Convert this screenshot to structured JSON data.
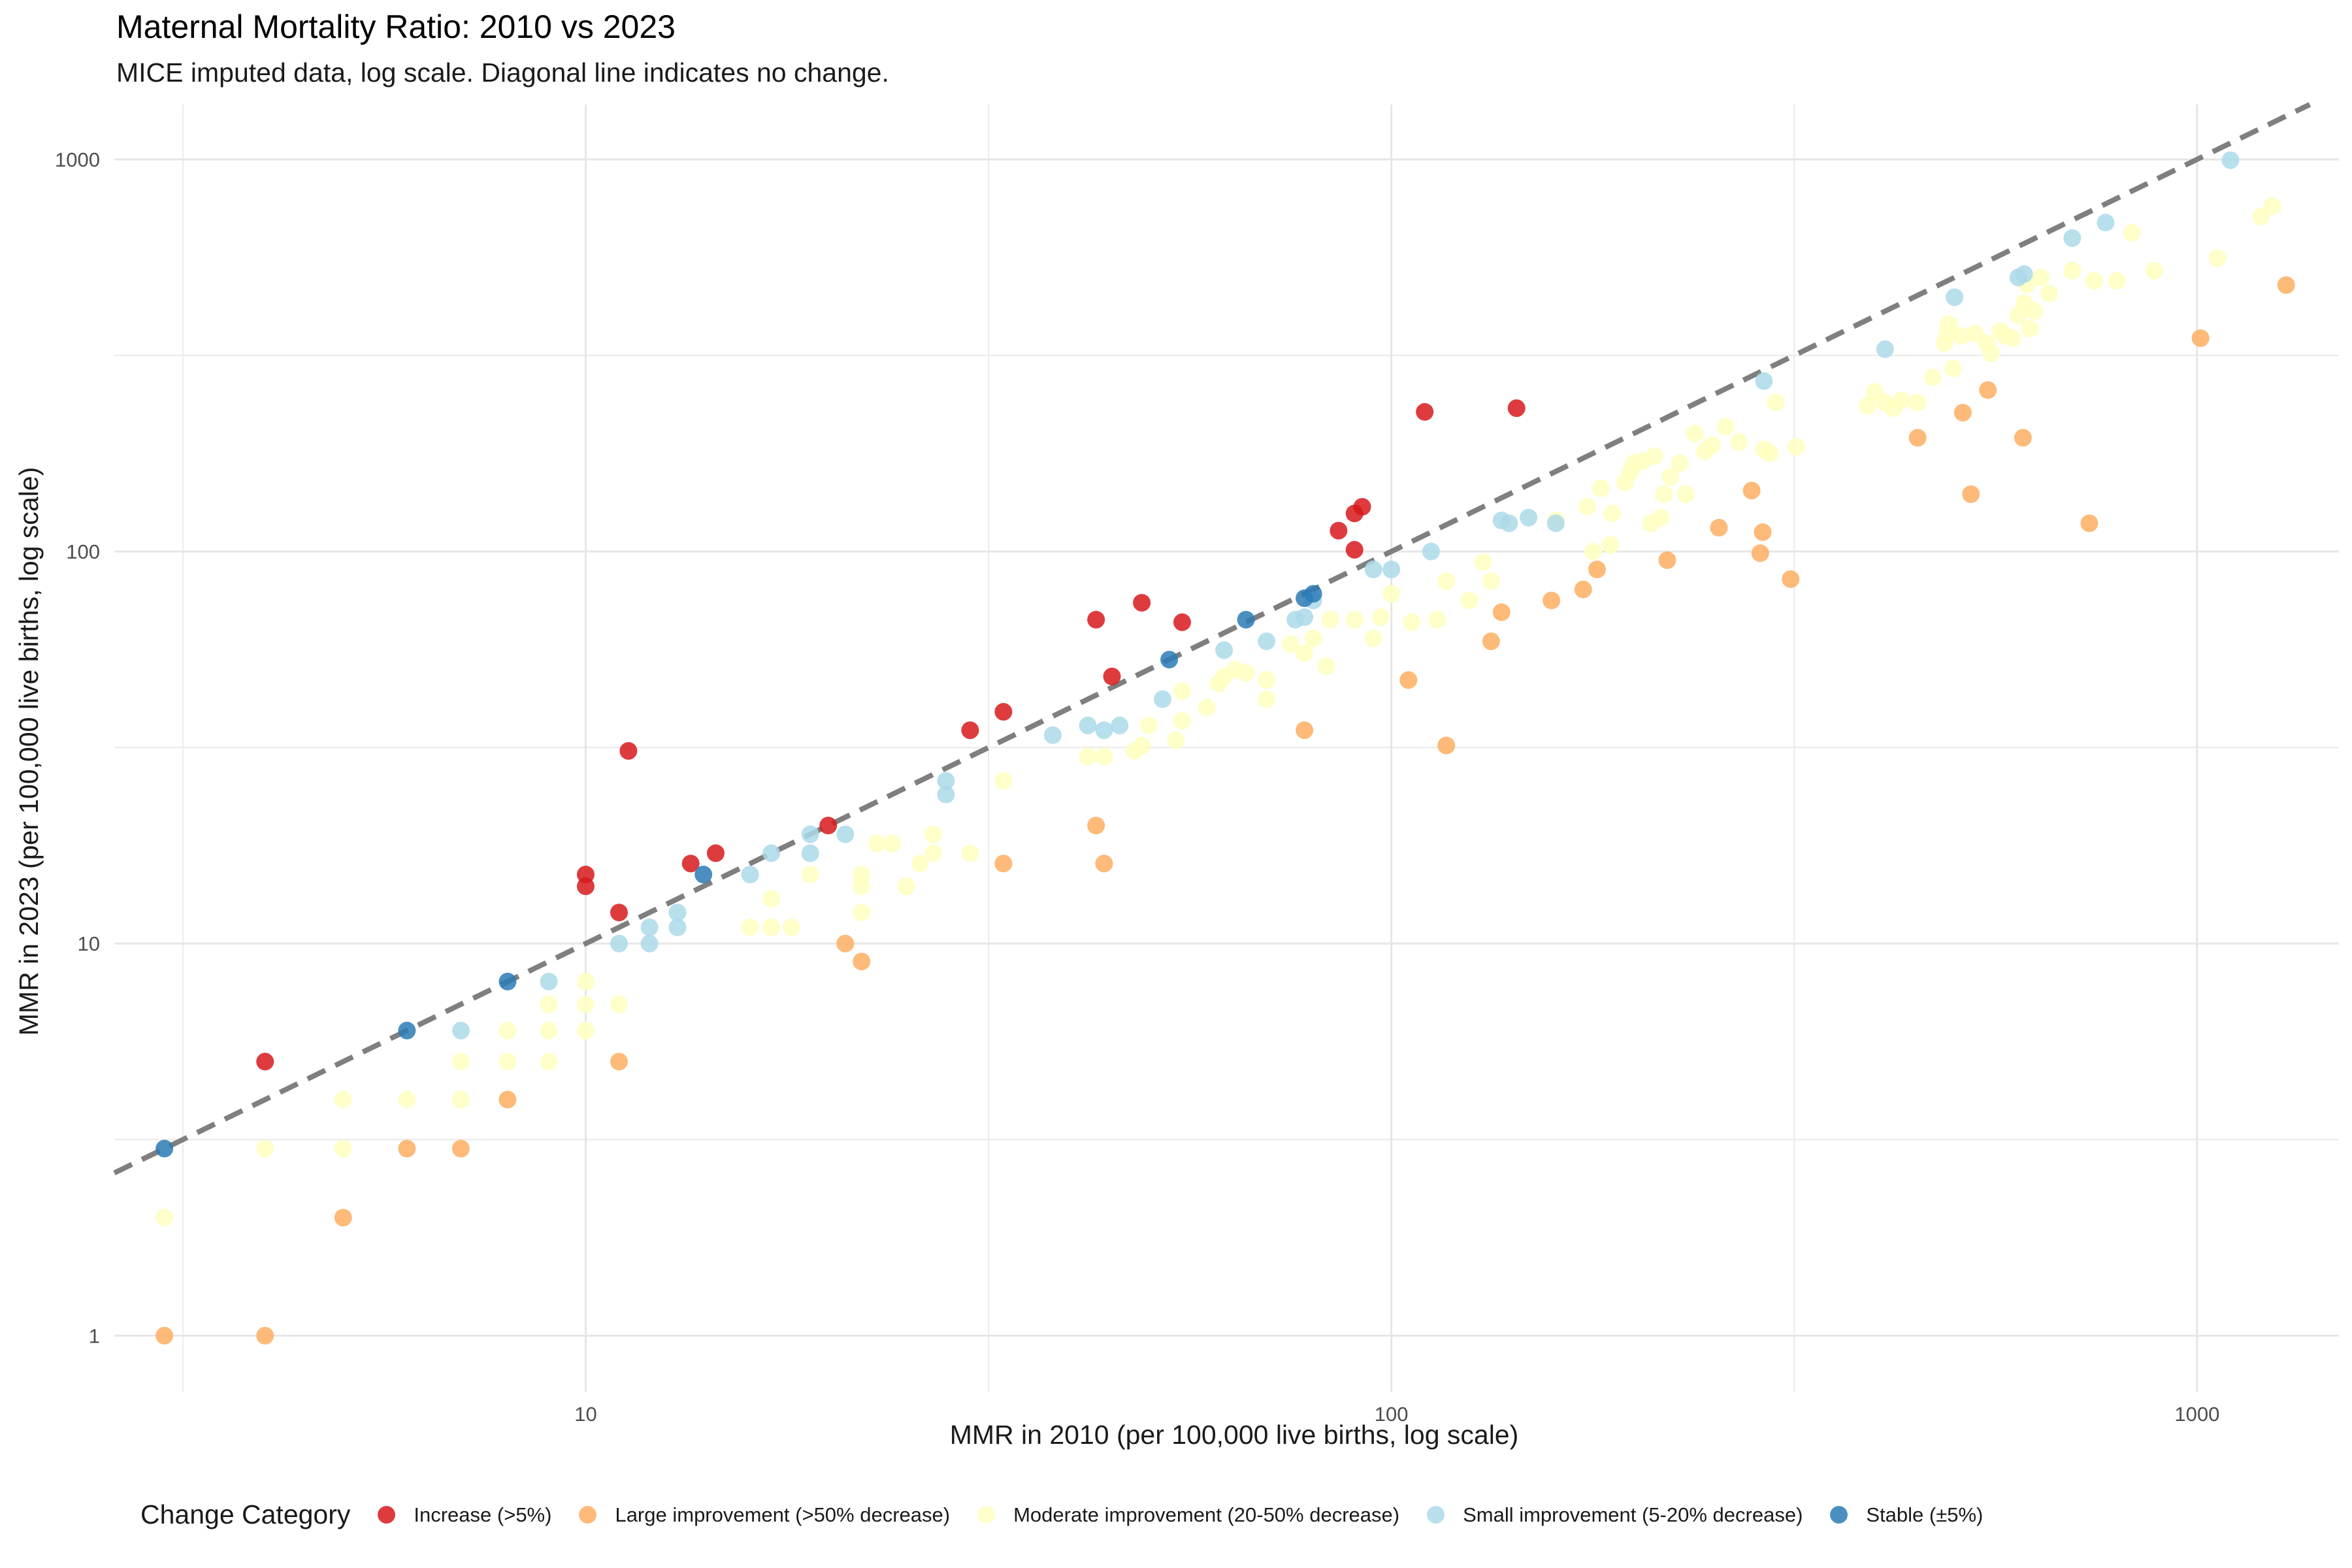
{
  "chart_data": {
    "type": "scatter",
    "title": "Maternal Mortality Ratio: 2010 vs 2023",
    "subtitle": "MICE imputed data, log scale. Diagonal line indicates no change.",
    "xlabel": "MMR in 2010 (per 100,000 live births, log scale)",
    "ylabel": "MMR in 2023 (per 100,000 live births, log scale)",
    "x_scale": "log10",
    "y_scale": "log10",
    "xlim": [
      2.6,
      1500
    ],
    "ylim": [
      0.72,
      1380
    ],
    "x_ticks": [
      10,
      100,
      1000
    ],
    "x_tick_labels": [
      "10",
      "100",
      "1000"
    ],
    "y_ticks": [
      1,
      10,
      100,
      1000
    ],
    "y_tick_labels": [
      "1",
      "10",
      "100",
      "1000"
    ],
    "grid": true,
    "reference_line": "y = x (dashed, grey)",
    "legend": {
      "title": "Change Category",
      "position": "bottom"
    },
    "series": [
      {
        "name": "Increase (>5%)",
        "color": "#d7191c",
        "points": [
          [
            4,
            5
          ],
          [
            10,
            15
          ],
          [
            10,
            14
          ],
          [
            11,
            12
          ],
          [
            11.3,
            31
          ],
          [
            13.5,
            16
          ],
          [
            14.5,
            17
          ],
          [
            20,
            20
          ],
          [
            30,
            35
          ],
          [
            33,
            39
          ],
          [
            43,
            67
          ],
          [
            45,
            48
          ],
          [
            49,
            74
          ],
          [
            55,
            66
          ],
          [
            86,
            113
          ],
          [
            90,
            101
          ],
          [
            90,
            125
          ],
          [
            92,
            130
          ],
          [
            110,
            227
          ],
          [
            143,
            232
          ]
        ]
      },
      {
        "name": "Large improvement (>50% decrease)",
        "color": "#fdae61",
        "points": [
          [
            3,
            1
          ],
          [
            4,
            1
          ],
          [
            5,
            2
          ],
          [
            6,
            3
          ],
          [
            7,
            3
          ],
          [
            8,
            4
          ],
          [
            11,
            5
          ],
          [
            21,
            10
          ],
          [
            22,
            9
          ],
          [
            33,
            16
          ],
          [
            43,
            20
          ],
          [
            44,
            16
          ],
          [
            78,
            35
          ],
          [
            105,
            47
          ],
          [
            117,
            32
          ],
          [
            133,
            59
          ],
          [
            137,
            70
          ],
          [
            158,
            75
          ],
          [
            173,
            80
          ],
          [
            180,
            90
          ],
          [
            220,
            95
          ],
          [
            255,
            115
          ],
          [
            280,
            143
          ],
          [
            289,
            112
          ],
          [
            287,
            99
          ],
          [
            313,
            85
          ],
          [
            450,
            195
          ],
          [
            512,
            226
          ],
          [
            524,
            140
          ],
          [
            550,
            258
          ],
          [
            608,
            195
          ],
          [
            735,
            118
          ],
          [
            1010,
            350
          ],
          [
            1290,
            478
          ]
        ]
      },
      {
        "name": "Moderate improvement (20-50% decrease)",
        "color": "#ffffbf",
        "points": [
          [
            3,
            2
          ],
          [
            4,
            3
          ],
          [
            5,
            3
          ],
          [
            5,
            4
          ],
          [
            6,
            4
          ],
          [
            7,
            4
          ],
          [
            7,
            5
          ],
          [
            8,
            5
          ],
          [
            8,
            6
          ],
          [
            9,
            5
          ],
          [
            9,
            6
          ],
          [
            9,
            7
          ],
          [
            10,
            6
          ],
          [
            10,
            7
          ],
          [
            10,
            8
          ],
          [
            11,
            7
          ],
          [
            16,
            11
          ],
          [
            17,
            11
          ],
          [
            18,
            11
          ],
          [
            17,
            13
          ],
          [
            19,
            15
          ],
          [
            22,
            14
          ],
          [
            22,
            15
          ],
          [
            22,
            12
          ],
          [
            23,
            18
          ],
          [
            24,
            18
          ],
          [
            25,
            14
          ],
          [
            26,
            16
          ],
          [
            27,
            19
          ],
          [
            27,
            17
          ],
          [
            30,
            17
          ],
          [
            33,
            26
          ],
          [
            42,
            30
          ],
          [
            44,
            30
          ],
          [
            48,
            31
          ],
          [
            49,
            32
          ],
          [
            50,
            36
          ],
          [
            54,
            33
          ],
          [
            55,
            44
          ],
          [
            55,
            37
          ],
          [
            59,
            40
          ],
          [
            61,
            46
          ],
          [
            62,
            48
          ],
          [
            64,
            50
          ],
          [
            66,
            49
          ],
          [
            70,
            42
          ],
          [
            70,
            47
          ],
          [
            75,
            58
          ],
          [
            78,
            55
          ],
          [
            80,
            60
          ],
          [
            83,
            51
          ],
          [
            84,
            67
          ],
          [
            90,
            67
          ],
          [
            95,
            60
          ],
          [
            97,
            68
          ],
          [
            100,
            78
          ],
          [
            106,
            66
          ],
          [
            114,
            67
          ],
          [
            117,
            84
          ],
          [
            125,
            75
          ],
          [
            130,
            94
          ],
          [
            133,
            84
          ],
          [
            160,
            120
          ],
          [
            175,
            130
          ],
          [
            178,
            100
          ],
          [
            182,
            145
          ],
          [
            187,
            104
          ],
          [
            188,
            125
          ],
          [
            195,
            150
          ],
          [
            198,
            160
          ],
          [
            200,
            168
          ],
          [
            205,
            170
          ],
          [
            210,
            118
          ],
          [
            212,
            175
          ],
          [
            216,
            122
          ],
          [
            218,
            140
          ],
          [
            222,
            155
          ],
          [
            228,
            168
          ],
          [
            232,
            140
          ],
          [
            238,
            200
          ],
          [
            245,
            180
          ],
          [
            250,
            187
          ],
          [
            260,
            208
          ],
          [
            270,
            190
          ],
          [
            290,
            182
          ],
          [
            295,
            178
          ],
          [
            300,
            240
          ],
          [
            318,
            185
          ],
          [
            390,
            235
          ],
          [
            398,
            255
          ],
          [
            410,
            240
          ],
          [
            420,
            232
          ],
          [
            430,
            243
          ],
          [
            450,
            240
          ],
          [
            470,
            278
          ],
          [
            486,
            340
          ],
          [
            490,
            360
          ],
          [
            492,
            380
          ],
          [
            498,
            293
          ],
          [
            510,
            355
          ],
          [
            530,
            360
          ],
          [
            548,
            340
          ],
          [
            555,
            320
          ],
          [
            570,
            365
          ],
          [
            578,
            355
          ],
          [
            590,
            350
          ],
          [
            600,
            400
          ],
          [
            610,
            430
          ],
          [
            615,
            480
          ],
          [
            620,
            370
          ],
          [
            628,
            410
          ],
          [
            640,
            500
          ],
          [
            655,
            455
          ],
          [
            700,
            520
          ],
          [
            745,
            490
          ],
          [
            795,
            490
          ],
          [
            830,
            650
          ],
          [
            885,
            520
          ],
          [
            1060,
            560
          ],
          [
            1200,
            715
          ],
          [
            1240,
            760
          ]
        ]
      },
      {
        "name": "Small improvement (5-20% decrease)",
        "color": "#abd9e9",
        "points": [
          [
            7,
            6
          ],
          [
            9,
            8
          ],
          [
            11,
            10
          ],
          [
            12,
            10
          ],
          [
            12,
            11
          ],
          [
            13,
            11
          ],
          [
            13,
            12
          ],
          [
            16,
            15
          ],
          [
            17,
            17
          ],
          [
            19,
            17
          ],
          [
            19,
            19
          ],
          [
            21,
            19
          ],
          [
            28,
            24
          ],
          [
            28,
            26
          ],
          [
            38,
            34
          ],
          [
            42,
            36
          ],
          [
            44,
            35
          ],
          [
            46,
            36
          ],
          [
            52,
            42
          ],
          [
            62,
            56
          ],
          [
            70,
            59
          ],
          [
            76,
            67
          ],
          [
            80,
            75
          ],
          [
            78,
            68
          ],
          [
            95,
            90
          ],
          [
            100,
            90
          ],
          [
            112,
            100
          ],
          [
            137,
            120
          ],
          [
            140,
            118
          ],
          [
            148,
            122
          ],
          [
            160,
            118
          ],
          [
            290,
            272
          ],
          [
            410,
            328
          ],
          [
            500,
            445
          ],
          [
            600,
            500
          ],
          [
            610,
            510
          ],
          [
            700,
            630
          ],
          [
            770,
            690
          ],
          [
            1100,
            995
          ]
        ]
      },
      {
        "name": "Stable (±5%)",
        "color": "#2c7bb6",
        "points": [
          [
            3,
            3
          ],
          [
            6,
            6
          ],
          [
            8,
            8
          ],
          [
            14,
            15
          ],
          [
            53,
            53
          ],
          [
            66,
            67
          ],
          [
            78,
            76
          ],
          [
            80,
            78
          ]
        ]
      }
    ]
  }
}
